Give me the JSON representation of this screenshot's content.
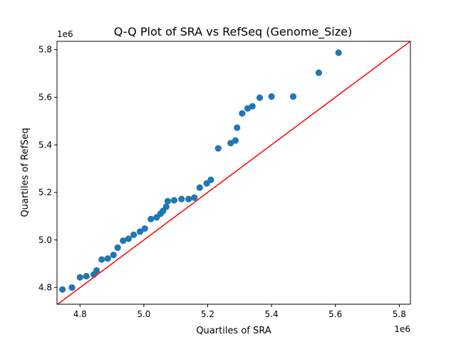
{
  "chart_data": {
    "type": "scatter",
    "title": "Q-Q Plot of SRA vs RefSeq (Genome_Size)",
    "xlabel": "Quartiles of SRA",
    "ylabel": "Quartiles of RefSeq",
    "x_offset_label": "1e6",
    "y_offset_label": "1e6",
    "xlim": [
      4.728,
      5.835
    ],
    "ylim": [
      4.73,
      5.835
    ],
    "x_ticks": [
      4.8,
      5.0,
      5.2,
      5.4,
      5.6,
      5.8
    ],
    "x_tick_labels": [
      "4.8",
      "5.0",
      "5.2",
      "5.4",
      "5.6",
      "5.8"
    ],
    "y_ticks": [
      4.8,
      5.0,
      5.2,
      5.4,
      5.6,
      5.8
    ],
    "y_tick_labels": [
      "4.8",
      "5.0",
      "5.2",
      "5.4",
      "5.6",
      "5.8"
    ],
    "grid": false,
    "point_color": "#1f77b4",
    "reference_line_color": "#ff0000",
    "reference_line": "y = x",
    "points": [
      [
        4.745,
        4.792
      ],
      [
        4.775,
        4.8
      ],
      [
        4.8,
        4.843
      ],
      [
        4.82,
        4.848
      ],
      [
        4.843,
        4.855
      ],
      [
        4.852,
        4.872
      ],
      [
        4.868,
        4.918
      ],
      [
        4.887,
        4.922
      ],
      [
        4.905,
        4.937
      ],
      [
        4.918,
        4.968
      ],
      [
        4.935,
        4.997
      ],
      [
        4.952,
        5.005
      ],
      [
        4.968,
        5.022
      ],
      [
        4.988,
        5.035
      ],
      [
        5.003,
        5.048
      ],
      [
        5.022,
        5.088
      ],
      [
        5.04,
        5.095
      ],
      [
        5.052,
        5.11
      ],
      [
        5.06,
        5.122
      ],
      [
        5.07,
        5.14
      ],
      [
        5.075,
        5.163
      ],
      [
        5.095,
        5.167
      ],
      [
        5.118,
        5.172
      ],
      [
        5.14,
        5.172
      ],
      [
        5.158,
        5.178
      ],
      [
        5.175,
        5.22
      ],
      [
        5.197,
        5.238
      ],
      [
        5.21,
        5.253
      ],
      [
        5.233,
        5.385
      ],
      [
        5.272,
        5.407
      ],
      [
        5.287,
        5.418
      ],
      [
        5.292,
        5.472
      ],
      [
        5.308,
        5.532
      ],
      [
        5.325,
        5.553
      ],
      [
        5.34,
        5.562
      ],
      [
        5.363,
        5.598
      ],
      [
        5.4,
        5.603
      ],
      [
        5.468,
        5.603
      ],
      [
        5.548,
        5.703
      ],
      [
        5.61,
        5.787
      ]
    ]
  }
}
